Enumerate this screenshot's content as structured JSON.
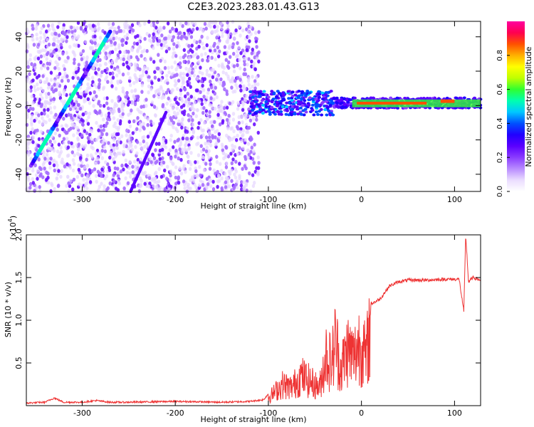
{
  "title": "C2E3.2023.283.01.43.G13",
  "colors": {
    "snr_line": "#ee3333",
    "colormap": [
      "#ffffff",
      "#eadcff",
      "#b98cff",
      "#8a3cff",
      "#5a00ff",
      "#2200ff",
      "#0050ff",
      "#00c8ff",
      "#00ffb0",
      "#30ff30",
      "#c0ff00",
      "#ffff00",
      "#ffb000",
      "#ff5000",
      "#ff0050",
      "#ff00a0"
    ]
  },
  "chart_data": [
    {
      "type": "heatmap",
      "xlabel": "Height of straight line (km)",
      "ylabel": "Frequency (Hz)",
      "xlim": [
        -360,
        128
      ],
      "ylim": [
        -50,
        49
      ],
      "xticks": [
        -300,
        -200,
        -100,
        0,
        100
      ],
      "yticks": [
        -40,
        -20,
        0,
        20,
        40
      ],
      "colorbar": {
        "label": "Normalized spectral amplitude",
        "range": [
          0,
          1
        ],
        "ticks": [
          "0.0",
          "0.2",
          "0.4",
          "0.6",
          "0.8"
        ],
        "tick_values": [
          0.0,
          0.2,
          0.4,
          0.6,
          0.8
        ],
        "colormap": "rainbow"
      },
      "features": [
        {
          "name": "steep streak",
          "x": [
            -355,
            -270
          ],
          "y": [
            -35,
            43
          ],
          "amplitude": 0.35
        },
        {
          "name": "faint streak",
          "x": [
            -248,
            -210
          ],
          "y": [
            -50,
            -4
          ],
          "amplitude": 0.1
        },
        {
          "name": "noise region",
          "x": [
            -360,
            -110
          ],
          "y": [
            -50,
            49
          ],
          "amplitude": 0.05
        },
        {
          "name": "carrier band",
          "x": [
            -120,
            128
          ],
          "y": [
            -2,
            6
          ],
          "amplitude": 0.4
        },
        {
          "name": "carrier peak",
          "x": [
            -5,
            70
          ],
          "y": [
            1,
            1.5
          ],
          "amplitude": 1.0
        }
      ]
    },
    {
      "type": "line",
      "xlabel": "Height of straight line (km)",
      "ylabel": "SNR (10 * v/v)",
      "scale_label": "(x10",
      "scale_exp": "4",
      "scale_close": ")",
      "xlim": [
        -360,
        128
      ],
      "ylim": [
        0,
        2.0
      ],
      "xticks": [
        -300,
        -200,
        -100,
        0,
        100
      ],
      "yticks": [
        "0.5",
        "1.0",
        "1.5",
        "2.0"
      ],
      "ytick_values": [
        0.5,
        1.0,
        1.5,
        2.0
      ],
      "series": [
        {
          "x": [
            -360,
            -340,
            -330,
            -320,
            -300,
            -285,
            -270,
            -250,
            -200,
            -150,
            -120,
            -105,
            -95,
            -85,
            -75,
            -65,
            -55,
            -45,
            -38,
            -32,
            -28,
            -22,
            -15,
            -8,
            -4,
            0,
            5,
            8,
            12,
            20,
            30,
            40,
            50,
            70,
            90,
            105,
            110,
            112,
            115,
            120,
            128
          ],
          "y": [
            0.02,
            0.03,
            0.08,
            0.03,
            0.03,
            0.05,
            0.03,
            0.03,
            0.04,
            0.03,
            0.04,
            0.06,
            0.2,
            0.35,
            0.3,
            0.5,
            0.4,
            0.3,
            0.85,
            0.7,
            1.1,
            0.6,
            0.95,
            0.8,
            1.0,
            1.05,
            0.75,
            1.2,
            1.2,
            1.25,
            1.4,
            1.45,
            1.47,
            1.47,
            1.48,
            1.48,
            1.1,
            2.0,
            1.45,
            1.5,
            1.47
          ]
        }
      ]
    }
  ]
}
